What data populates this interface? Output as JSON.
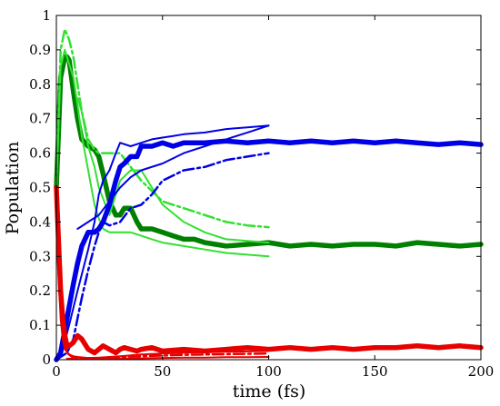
{
  "chart_data": {
    "type": "line",
    "xlabel": "time (fs)",
    "ylabel": "Population",
    "xlim": [
      0,
      200
    ],
    "ylim": [
      0,
      1
    ],
    "xticks": [
      0,
      50,
      100,
      150,
      200
    ],
    "yticks": [
      0,
      0.1,
      0.2,
      0.3,
      0.4,
      0.5,
      0.6,
      0.7,
      0.8,
      0.9,
      1
    ],
    "grid": false,
    "legend": "none",
    "series": [
      {
        "color": "#008000",
        "style": "thick-solid",
        "x": [
          0,
          2,
          4,
          5,
          6,
          8,
          10,
          12,
          15,
          18,
          20,
          22,
          25,
          28,
          30,
          32,
          35,
          38,
          40,
          45,
          50,
          55,
          60,
          65,
          70,
          80,
          90,
          100,
          110,
          120,
          130,
          140,
          150,
          160,
          170,
          180,
          190,
          200
        ],
        "y": [
          0.5,
          0.82,
          0.88,
          0.88,
          0.87,
          0.78,
          0.7,
          0.64,
          0.62,
          0.61,
          0.59,
          0.54,
          0.46,
          0.42,
          0.42,
          0.44,
          0.44,
          0.4,
          0.38,
          0.38,
          0.37,
          0.36,
          0.35,
          0.35,
          0.34,
          0.33,
          0.335,
          0.34,
          0.33,
          0.335,
          0.33,
          0.335,
          0.335,
          0.33,
          0.34,
          0.335,
          0.33,
          0.335
        ]
      },
      {
        "color": "#32e032",
        "style": "thin-solid",
        "x": [
          0,
          2,
          4,
          6,
          8,
          10,
          12,
          15,
          18,
          20,
          22,
          25,
          28,
          30,
          35,
          40,
          45,
          50,
          60,
          70,
          80,
          90,
          100
        ],
        "y": [
          0.5,
          0.85,
          0.9,
          0.86,
          0.82,
          0.74,
          0.65,
          0.55,
          0.45,
          0.41,
          0.38,
          0.37,
          0.37,
          0.37,
          0.37,
          0.36,
          0.35,
          0.34,
          0.33,
          0.32,
          0.31,
          0.305,
          0.3
        ]
      },
      {
        "color": "#32e032",
        "style": "dash-dot",
        "x": [
          0,
          2,
          4,
          6,
          8,
          10,
          12,
          15,
          18,
          20,
          25,
          30,
          35,
          40,
          45,
          50,
          60,
          70,
          80,
          90,
          100
        ],
        "y": [
          0.5,
          0.9,
          0.96,
          0.93,
          0.88,
          0.8,
          0.72,
          0.64,
          0.61,
          0.6,
          0.6,
          0.6,
          0.56,
          0.52,
          0.49,
          0.46,
          0.44,
          0.42,
          0.4,
          0.39,
          0.385
        ]
      },
      {
        "color": "#32e032",
        "style": "thin-solid",
        "x": [
          10,
          12,
          15,
          18,
          20,
          25,
          30,
          35,
          40,
          45,
          50,
          60,
          70,
          80,
          90,
          100
        ],
        "y": [
          0.76,
          0.72,
          0.62,
          0.56,
          0.5,
          0.42,
          0.52,
          0.55,
          0.55,
          0.5,
          0.45,
          0.4,
          0.37,
          0.35,
          0.345,
          0.34
        ]
      },
      {
        "color": "#0000e6",
        "style": "thick-solid",
        "x": [
          0,
          2,
          5,
          8,
          10,
          12,
          15,
          18,
          20,
          22,
          25,
          28,
          30,
          32,
          35,
          38,
          40,
          45,
          50,
          55,
          60,
          70,
          80,
          90,
          100,
          110,
          120,
          130,
          140,
          150,
          160,
          170,
          180,
          190,
          200
        ],
        "y": [
          0,
          0.02,
          0.12,
          0.22,
          0.28,
          0.33,
          0.37,
          0.37,
          0.38,
          0.4,
          0.45,
          0.52,
          0.56,
          0.57,
          0.59,
          0.59,
          0.62,
          0.62,
          0.63,
          0.62,
          0.63,
          0.63,
          0.635,
          0.63,
          0.635,
          0.63,
          0.635,
          0.63,
          0.635,
          0.63,
          0.635,
          0.63,
          0.625,
          0.63,
          0.625
        ]
      },
      {
        "color": "#0000e6",
        "style": "thin-solid",
        "x": [
          0,
          3,
          6,
          10,
          15,
          18,
          20,
          22,
          25,
          28,
          30,
          35,
          40,
          45,
          50,
          55,
          60,
          70,
          80,
          90,
          100
        ],
        "y": [
          0,
          0.03,
          0.1,
          0.2,
          0.32,
          0.4,
          0.48,
          0.52,
          0.55,
          0.6,
          0.63,
          0.62,
          0.63,
          0.64,
          0.645,
          0.65,
          0.655,
          0.66,
          0.67,
          0.675,
          0.68
        ]
      },
      {
        "color": "#0000e6",
        "style": "dash-dot",
        "x": [
          0,
          5,
          8,
          10,
          12,
          15,
          18,
          20,
          22,
          25,
          30,
          35,
          40,
          45,
          50,
          60,
          70,
          80,
          90,
          100
        ],
        "y": [
          0,
          0.02,
          0.06,
          0.12,
          0.18,
          0.26,
          0.33,
          0.37,
          0.4,
          0.39,
          0.4,
          0.44,
          0.45,
          0.48,
          0.52,
          0.55,
          0.56,
          0.58,
          0.59,
          0.6
        ]
      },
      {
        "color": "#0000e6",
        "style": "thin-solid",
        "x": [
          10,
          15,
          20,
          25,
          30,
          35,
          40,
          50,
          60,
          70,
          80,
          90,
          100
        ],
        "y": [
          0.38,
          0.4,
          0.42,
          0.46,
          0.5,
          0.53,
          0.55,
          0.57,
          0.6,
          0.62,
          0.64,
          0.66,
          0.68
        ]
      },
      {
        "color": "#e60000",
        "style": "thick-solid",
        "x": [
          0,
          1,
          2,
          3,
          4,
          5,
          6,
          8,
          10,
          12,
          15,
          18,
          20,
          22,
          25,
          28,
          30,
          32,
          35,
          38,
          40,
          45,
          50,
          60,
          70,
          80,
          90,
          100,
          110,
          120,
          130,
          140,
          150,
          160,
          170,
          180,
          190,
          200
        ],
        "y": [
          0.5,
          0.35,
          0.2,
          0.12,
          0.07,
          0.04,
          0.04,
          0.05,
          0.07,
          0.06,
          0.03,
          0.02,
          0.03,
          0.04,
          0.03,
          0.02,
          0.03,
          0.035,
          0.03,
          0.025,
          0.03,
          0.035,
          0.025,
          0.03,
          0.025,
          0.03,
          0.035,
          0.03,
          0.035,
          0.03,
          0.035,
          0.03,
          0.035,
          0.035,
          0.04,
          0.035,
          0.04,
          0.035
        ]
      },
      {
        "color": "#e60000",
        "style": "thin-solid",
        "x": [
          0,
          1,
          2,
          3,
          4,
          6,
          8,
          10,
          15,
          20,
          30,
          40,
          50,
          60,
          70,
          80,
          90,
          100
        ],
        "y": [
          0.5,
          0.25,
          0.12,
          0.06,
          0.03,
          0.015,
          0.01,
          0.008,
          0.005,
          0.006,
          0.01,
          0.015,
          0.018,
          0.02,
          0.022,
          0.023,
          0.024,
          0.025
        ]
      },
      {
        "color": "#e60000",
        "style": "dash-dot",
        "x": [
          0,
          1,
          2,
          3,
          5,
          8,
          10,
          15,
          20,
          30,
          40,
          50,
          60,
          70,
          80,
          90,
          100
        ],
        "y": [
          0.5,
          0.3,
          0.15,
          0.07,
          0.02,
          0.005,
          0.004,
          0.004,
          0.005,
          0.008,
          0.01,
          0.012,
          0.014,
          0.015,
          0.016,
          0.017,
          0.018
        ]
      },
      {
        "color": "#e60000",
        "style": "thin-solid",
        "x": [
          5,
          10,
          20,
          30,
          40,
          50,
          60,
          70,
          80,
          90,
          100
        ],
        "y": [
          0.003,
          0.002,
          0.002,
          0.003,
          0.004,
          0.005,
          0.006,
          0.006,
          0.007,
          0.007,
          0.008
        ]
      }
    ]
  }
}
